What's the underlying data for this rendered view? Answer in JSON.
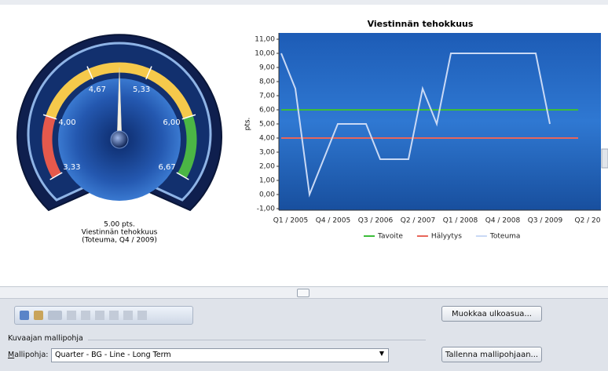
{
  "chart_data": [
    {
      "type": "gauge",
      "value": 5,
      "value_label": "5.00 pts.",
      "caption": [
        "Viestinnän tehokkuus",
        "(Toteuma, Q4 / 2009)"
      ],
      "ticks": [
        {
          "value": 3.33,
          "label": "3,33"
        },
        {
          "value": 4,
          "label": "4,00"
        },
        {
          "value": 4.67,
          "label": "4,67"
        },
        {
          "value": 5.33,
          "label": "5,33"
        },
        {
          "value": 6,
          "label": "6,00"
        },
        {
          "value": 6.67,
          "label": "6,67"
        }
      ],
      "bands": [
        {
          "from": 3.33,
          "to": 4,
          "color": "#e5594c"
        },
        {
          "from": 4,
          "to": 6,
          "color": "#f5c94b"
        },
        {
          "from": 6,
          "to": 6.67,
          "color": "#4bb645"
        }
      ]
    },
    {
      "type": "line",
      "title": "Viestinnän tehokkuus",
      "y_label": "pts.",
      "categories": [
        "Q1 / 2005",
        null,
        null,
        "Q4 / 2005",
        null,
        null,
        "Q3 / 2006",
        null,
        null,
        "Q2 / 2007",
        null,
        null,
        "Q1 / 2008",
        null,
        null,
        "Q4 / 2008",
        null,
        null,
        "Q3 / 2009",
        null,
        null,
        "Q2 / 20"
      ],
      "series": [
        {
          "name": "Tavoite",
          "color": "#3dbd3a",
          "values": [
            6,
            6,
            6,
            6,
            6,
            6,
            6,
            6,
            6,
            6,
            6,
            6,
            6,
            6,
            6,
            6,
            6,
            6,
            6,
            6,
            6,
            6
          ]
        },
        {
          "name": "Hälyytys",
          "color": "#e8665a",
          "values": [
            4,
            4,
            4,
            4,
            4,
            4,
            4,
            4,
            4,
            4,
            4,
            4,
            4,
            4,
            4,
            4,
            4,
            4,
            4,
            4,
            4,
            4
          ]
        },
        {
          "name": "Toteuma",
          "color": "#c9d9f5",
          "values": [
            10,
            7.5,
            0,
            2.5,
            5,
            5,
            5,
            2.5,
            2.5,
            2.5,
            7.5,
            5,
            10,
            10,
            10,
            10,
            10,
            10,
            10,
            5,
            null,
            null
          ]
        }
      ],
      "ylim": [
        -1,
        11
      ],
      "yticks": [
        {
          "value": -1,
          "label": "-1,00"
        },
        {
          "value": 0,
          "label": "0,00"
        },
        {
          "value": 1,
          "label": "1,00"
        },
        {
          "value": 2,
          "label": "2,00"
        },
        {
          "value": 3,
          "label": "3,00"
        },
        {
          "value": 4,
          "label": "4,00"
        },
        {
          "value": 5,
          "label": "5,00"
        },
        {
          "value": 6,
          "label": "6,00"
        },
        {
          "value": 7,
          "label": "7,00"
        },
        {
          "value": 8,
          "label": "8,00"
        },
        {
          "value": 9,
          "label": "9,00"
        },
        {
          "value": 10,
          "label": "10,00"
        },
        {
          "value": 11,
          "label": "11,00"
        }
      ],
      "legend": "bottom"
    }
  ],
  "buttons": {
    "edit": "Muokkaa ulkoasua...",
    "save": "Tallenna mallipohjaan..."
  },
  "template": {
    "group_label": "Kuvaajan mallipohja",
    "label": "Mallipohja:",
    "selected": "Quarter - BG - Line - Long Term"
  }
}
